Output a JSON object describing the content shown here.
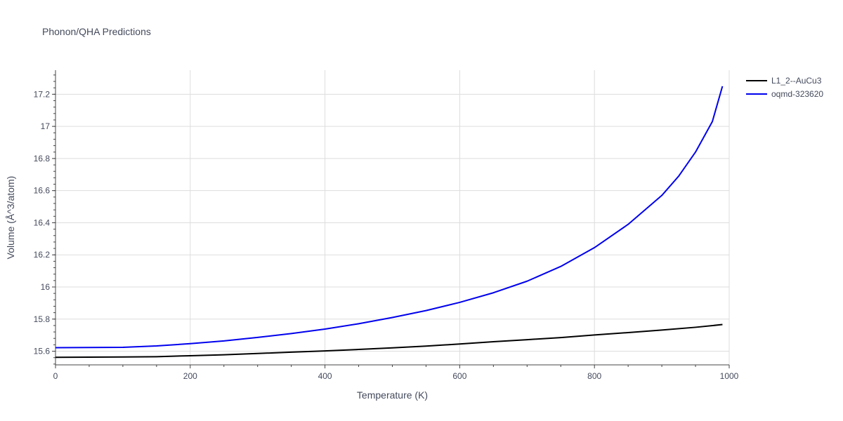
{
  "chart_data": {
    "type": "line",
    "title": "Phonon/QHA Predictions",
    "xlabel": "Temperature (K)",
    "ylabel": "Volume (Å^3/atom)",
    "xlim": [
      0,
      1000
    ],
    "ylim": [
      15.515,
      17.35
    ],
    "xticks": [
      0,
      200,
      400,
      600,
      800,
      1000
    ],
    "yticks": [
      15.6,
      15.8,
      16,
      16.2,
      16.4,
      16.6,
      16.8,
      17,
      17.2
    ],
    "grid": true,
    "legend_position": "top-right",
    "series": [
      {
        "name": "L1_2--AuCu3",
        "color": "#000000",
        "x": [
          0,
          50,
          100,
          150,
          200,
          250,
          300,
          350,
          400,
          450,
          500,
          550,
          600,
          650,
          700,
          750,
          800,
          850,
          900,
          950,
          990
        ],
        "y": [
          15.562,
          15.563,
          15.564,
          15.566,
          15.572,
          15.578,
          15.586,
          15.594,
          15.602,
          15.611,
          15.621,
          15.632,
          15.645,
          15.659,
          15.672,
          15.685,
          15.701,
          15.716,
          15.732,
          15.749,
          15.766
        ]
      },
      {
        "name": "oqmd-323620",
        "color": "#0000ee",
        "x": [
          0,
          50,
          100,
          150,
          200,
          250,
          300,
          350,
          400,
          450,
          500,
          550,
          600,
          650,
          700,
          750,
          800,
          850,
          900,
          925,
          950,
          975,
          990
        ],
        "y": [
          15.622,
          15.623,
          15.624,
          15.633,
          15.647,
          15.664,
          15.686,
          15.71,
          15.738,
          15.771,
          15.81,
          15.853,
          15.904,
          15.964,
          16.036,
          16.128,
          16.245,
          16.39,
          16.57,
          16.69,
          16.84,
          17.03,
          17.25
        ]
      }
    ]
  }
}
